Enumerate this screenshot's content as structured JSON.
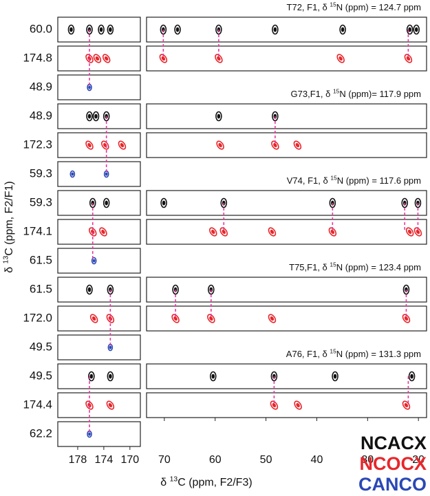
{
  "chart_data": {
    "type": "nmr-strips",
    "ylabel": {
      "pre": "δ ",
      "sup": "13",
      "post": "C (ppm, F2/F1)"
    },
    "xlabel": {
      "pre": "δ ",
      "sup": "13",
      "post": "C (ppm, F2/F3)"
    },
    "series": [
      {
        "name": "NCACX",
        "color": "#111111"
      },
      {
        "name": "NCOCX",
        "color": "#e8262b"
      },
      {
        "name": "CANCO",
        "color": "#2a48b5"
      }
    ],
    "link_color": "#e6389c",
    "left": {
      "xlim": [
        181.05,
        168.4
      ],
      "xticks": [
        178,
        174,
        170
      ]
    },
    "right": {
      "xlim": [
        73.5,
        18.4
      ],
      "xticks": [
        70,
        60,
        50,
        40,
        30,
        20
      ]
    },
    "groups": [
      {
        "title": {
          "pre": "T72, F1, δ ",
          "sup": "15",
          "post": "N (ppm) = 124.7 ppm"
        },
        "left_rows": [
          {
            "label": "60.0",
            "series": 0,
            "peaks": [
              179.0,
              176.2,
              174.4,
              173.0
            ]
          },
          {
            "label": "174.8",
            "series": 1,
            "peaks": [
              176.2,
              175.0,
              173.6
            ]
          },
          {
            "label": "48.9",
            "series": 2,
            "peaks": [
              176.2
            ]
          }
        ],
        "left_link": 176.2,
        "right_rows": [
          {
            "series": 0,
            "peaks": [
              70.2,
              67.4,
              59.3,
              48.2,
              34.9,
              21.7,
              20.4
            ]
          },
          {
            "series": 1,
            "peaks": [
              70.2,
              59.3,
              35.3,
              22.0
            ]
          }
        ],
        "right_links": [
          70.2,
          59.3,
          22.0
        ]
      },
      {
        "title": {
          "pre": "G73,F1, δ ",
          "sup": "15",
          "post": "N (ppm)= 117.9 ppm"
        },
        "left_rows": [
          {
            "label": "48.9",
            "series": 0,
            "peaks": [
              176.2,
              175.2,
              173.6
            ]
          },
          {
            "label": "172.3",
            "series": 1,
            "peaks": [
              176.2,
              173.8,
              171.2
            ]
          },
          {
            "label": "59.3",
            "series": 2,
            "peaks": [
              178.8,
              173.6
            ]
          }
        ],
        "left_link": 173.6,
        "right_rows": [
          {
            "series": 0,
            "peaks": [
              59.3,
              48.2
            ]
          },
          {
            "series": 1,
            "peaks": [
              59.0,
              48.2,
              43.8
            ]
          }
        ],
        "right_links": [
          48.2
        ]
      },
      {
        "title": {
          "pre": "V74, F1, δ ",
          "sup": "15",
          "post": "N (ppm) = 117.6 ppm"
        },
        "left_rows": [
          {
            "label": "59.3",
            "series": 0,
            "peaks": [
              175.7,
              173.6
            ]
          },
          {
            "label": "174.1",
            "series": 1,
            "peaks": [
              175.7,
              174.1
            ]
          },
          {
            "label": "61.5",
            "series": 2,
            "peaks": [
              175.5
            ]
          }
        ],
        "left_link": 175.7,
        "right_rows": [
          {
            "series": 0,
            "peaks": [
              70.1,
              58.3,
              36.9,
              22.7,
              20.1
            ]
          },
          {
            "series": 1,
            "peaks": [
              60.4,
              58.3,
              48.8,
              36.9,
              21.7,
              20.1
            ]
          }
        ],
        "right_links": [
          58.3,
          36.9,
          22.7,
          20.1
        ]
      },
      {
        "title": {
          "pre": "T75,F1, δ ",
          "sup": "15",
          "post": "N (ppm) = 123.4 ppm"
        },
        "left_rows": [
          {
            "label": "61.5",
            "series": 0,
            "peaks": [
              176.2,
              173.0
            ]
          },
          {
            "label": "172.0",
            "series": 1,
            "peaks": [
              175.5,
              173.0
            ]
          },
          {
            "label": "49.5",
            "series": 2,
            "peaks": [
              173.0
            ]
          }
        ],
        "left_link": 173.0,
        "right_rows": [
          {
            "series": 0,
            "peaks": [
              67.8,
              60.8,
              22.4
            ]
          },
          {
            "series": 1,
            "peaks": [
              67.8,
              60.8,
              48.8,
              22.4
            ]
          }
        ],
        "right_links": [
          67.8,
          60.8,
          22.4
        ]
      },
      {
        "title": {
          "pre": "A76, F1, δ ",
          "sup": "15",
          "post": "N (ppm) = 131.3 ppm"
        },
        "left_rows": [
          {
            "label": "49.5",
            "series": 0,
            "peaks": [
              175.9,
              173.0
            ]
          },
          {
            "label": "174.4",
            "series": 1,
            "peaks": [
              176.2,
              173.0
            ]
          },
          {
            "label": "62.2",
            "series": 2,
            "peaks": [
              176.2
            ]
          }
        ],
        "left_link": 176.2,
        "right_rows": [
          {
            "series": 0,
            "peaks": [
              60.4,
              48.4,
              36.4,
              21.3
            ]
          },
          {
            "series": 1,
            "peaks": [
              48.4,
              43.7,
              22.4
            ]
          }
        ],
        "right_links": [
          48.4,
          22.0
        ]
      }
    ]
  }
}
